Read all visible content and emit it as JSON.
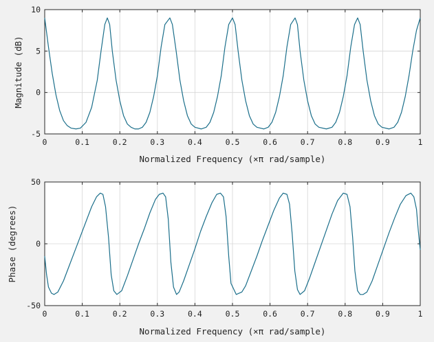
{
  "chart_data": [
    {
      "type": "line",
      "title": "",
      "xlabel": "Normalized Frequency  (×π rad/sample)",
      "ylabel": "Magnitude (dB)",
      "xlim": [
        0,
        1
      ],
      "ylim": [
        -5,
        10
      ],
      "xticks": [
        0,
        0.1,
        0.2,
        0.3,
        0.4,
        0.5,
        0.6,
        0.7,
        0.8,
        0.9,
        1
      ],
      "xtick_labels": [
        "0",
        "0.1",
        "0.2",
        "0.3",
        "0.4",
        "0.5",
        "0.6",
        "0.7",
        "0.8",
        "0.9",
        "1"
      ],
      "yticks": [
        -5,
        0,
        5,
        10
      ],
      "ytick_labels": [
        "-5",
        "0",
        "5",
        "10"
      ],
      "grid": true,
      "color": "#1a6e8a",
      "series": [
        {
          "x": [
            0,
            0.01,
            0.02,
            0.03,
            0.04,
            0.05,
            0.06,
            0.07,
            0.0833,
            0.095,
            0.11,
            0.125,
            0.14,
            0.15,
            0.16,
            0.1667,
            0.173,
            0.18,
            0.19,
            0.2,
            0.21,
            0.22,
            0.23,
            0.24,
            0.25,
            0.26,
            0.27,
            0.28,
            0.29,
            0.3,
            0.31,
            0.32,
            0.3333,
            0.34,
            0.35,
            0.36,
            0.37,
            0.38,
            0.39,
            0.4,
            0.4167,
            0.43,
            0.44,
            0.45,
            0.46,
            0.47,
            0.48,
            0.49,
            0.5,
            0.507,
            0.515,
            0.525,
            0.535,
            0.545,
            0.555,
            0.565,
            0.5833,
            0.595,
            0.605,
            0.615,
            0.625,
            0.635,
            0.645,
            0.655,
            0.6667,
            0.673,
            0.68,
            0.69,
            0.7,
            0.71,
            0.72,
            0.73,
            0.75,
            0.765,
            0.775,
            0.785,
            0.795,
            0.805,
            0.815,
            0.825,
            0.8333,
            0.84,
            0.848,
            0.858,
            0.868,
            0.878,
            0.888,
            0.898,
            0.9167,
            0.93,
            0.94,
            0.95,
            0.96,
            0.97,
            0.98,
            0.99,
            1.0
          ],
          "y": [
            9,
            5.5,
            2.3,
            -0.3,
            -2.2,
            -3.4,
            -4.0,
            -4.3,
            -4.4,
            -4.3,
            -3.6,
            -1.8,
            1.5,
            5.0,
            8.2,
            9,
            8.2,
            5.0,
            1.5,
            -1.0,
            -2.8,
            -3.8,
            -4.2,
            -4.4,
            -4.4,
            -4.2,
            -3.6,
            -2.4,
            -0.5,
            2.0,
            5.5,
            8.2,
            9,
            8.2,
            5.0,
            1.5,
            -1.0,
            -2.8,
            -3.8,
            -4.2,
            -4.4,
            -4.2,
            -3.6,
            -2.4,
            -0.5,
            2.0,
            5.5,
            8.2,
            9,
            8.2,
            5.0,
            1.5,
            -1.0,
            -2.8,
            -3.8,
            -4.2,
            -4.4,
            -4.2,
            -3.6,
            -2.4,
            -0.5,
            2.0,
            5.5,
            8.2,
            9,
            8.2,
            5.0,
            1.5,
            -1.0,
            -2.8,
            -3.8,
            -4.2,
            -4.4,
            -4.2,
            -3.6,
            -2.4,
            -0.5,
            2.0,
            5.5,
            8.2,
            9,
            8.2,
            5.0,
            1.5,
            -1.0,
            -2.8,
            -3.8,
            -4.2,
            -4.4,
            -4.2,
            -3.6,
            -2.4,
            -0.5,
            2.0,
            5.0,
            7.5,
            9
          ]
        }
      ]
    },
    {
      "type": "line",
      "title": "",
      "xlabel": "Normalized Frequency  (×π rad/sample)",
      "ylabel": "Phase (degrees)",
      "xlim": [
        0,
        1
      ],
      "ylim": [
        -50,
        50
      ],
      "xticks": [
        0,
        0.1,
        0.2,
        0.3,
        0.4,
        0.5,
        0.6,
        0.7,
        0.8,
        0.9,
        1
      ],
      "xtick_labels": [
        "0",
        "0.1",
        "0.2",
        "0.3",
        "0.4",
        "0.5",
        "0.6",
        "0.7",
        "0.8",
        "0.9",
        "1"
      ],
      "yticks": [
        -50,
        0,
        50
      ],
      "ytick_labels": [
        "-50",
        "0",
        "50"
      ],
      "grid": true,
      "color": "#1a6e8a",
      "series": [
        {
          "x": [
            0,
            0.005,
            0.01,
            0.018,
            0.025,
            0.035,
            0.05,
            0.065,
            0.08,
            0.095,
            0.11,
            0.125,
            0.138,
            0.148,
            0.155,
            0.162,
            0.17,
            0.177,
            0.184,
            0.192,
            0.205,
            0.22,
            0.235,
            0.25,
            0.265,
            0.28,
            0.295,
            0.305,
            0.315,
            0.322,
            0.329,
            0.336,
            0.343,
            0.351,
            0.358,
            0.37,
            0.385,
            0.4,
            0.415,
            0.43,
            0.445,
            0.458,
            0.468,
            0.476,
            0.483,
            0.49,
            0.496,
            0.51,
            0.525,
            0.535,
            0.55,
            0.565,
            0.58,
            0.595,
            0.61,
            0.625,
            0.635,
            0.645,
            0.652,
            0.659,
            0.666,
            0.673,
            0.68,
            0.692,
            0.705,
            0.72,
            0.735,
            0.75,
            0.765,
            0.78,
            0.795,
            0.805,
            0.813,
            0.82,
            0.826,
            0.833,
            0.84,
            0.848,
            0.858,
            0.872,
            0.887,
            0.902,
            0.917,
            0.932,
            0.947,
            0.962,
            0.975,
            0.983,
            0.99,
            0.995,
            1.0
          ],
          "y": [
            -10,
            -25,
            -35,
            -40,
            -41,
            -39,
            -30,
            -18,
            -6,
            6,
            18,
            30,
            38,
            41,
            40,
            30,
            5,
            -25,
            -38,
            -41,
            -38,
            -26,
            -13,
            0,
            12,
            25,
            36,
            40,
            41,
            38,
            20,
            -15,
            -35,
            -41,
            -39,
            -30,
            -17,
            -4,
            10,
            22,
            33,
            40,
            41,
            38,
            22,
            -10,
            -32,
            -41,
            -39,
            -34,
            -22,
            -10,
            3,
            15,
            27,
            37,
            41,
            40,
            32,
            8,
            -22,
            -37,
            -41,
            -38,
            -28,
            -15,
            -2,
            11,
            24,
            35,
            41,
            40,
            30,
            5,
            -22,
            -38,
            -41,
            -41,
            -39,
            -30,
            -17,
            -4,
            9,
            21,
            32,
            39,
            41,
            38,
            28,
            10,
            -5
          ]
        }
      ]
    }
  ]
}
